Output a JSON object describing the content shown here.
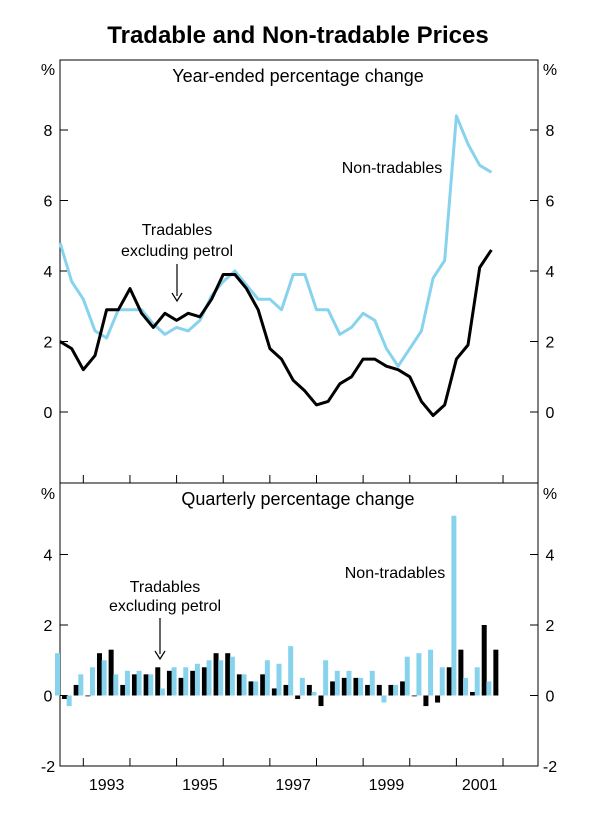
{
  "colors": {
    "tradables": "#000000",
    "nontradables": "#87d3ee",
    "frame": "#000000"
  },
  "chart_data": [
    {
      "type": "line",
      "title": "Tradable and Non-tradable Prices",
      "subtitle": "Year-ended percentage change",
      "unit_label": "%",
      "ylim": [
        -2,
        10
      ],
      "yticks": [
        "8",
        "6",
        "4",
        "2",
        "0"
      ],
      "ytick_values": [
        8,
        6,
        4,
        2,
        0
      ],
      "x_start": 1991.5,
      "x_step": 0.25,
      "series": [
        {
          "name": "Non-tradables",
          "values": [
            4.8,
            3.7,
            3.2,
            2.3,
            2.1,
            2.9,
            2.9,
            2.9,
            2.5,
            2.2,
            2.4,
            2.3,
            2.6,
            3.3,
            3.7,
            4.0,
            3.6,
            3.2,
            3.2,
            2.9,
            3.9,
            3.9,
            2.9,
            2.9,
            2.2,
            2.4,
            2.8,
            2.6,
            1.8,
            1.3,
            1.8,
            2.3,
            3.8,
            4.3,
            8.4,
            7.6,
            7.0,
            6.8
          ]
        },
        {
          "name": "Tradables excluding petrol",
          "values": [
            2.0,
            1.8,
            1.2,
            1.6,
            2.9,
            2.9,
            3.5,
            2.8,
            2.4,
            2.8,
            2.6,
            2.8,
            2.7,
            3.2,
            3.9,
            3.9,
            3.5,
            2.9,
            1.8,
            1.5,
            0.9,
            0.6,
            0.2,
            0.3,
            0.8,
            1.0,
            1.5,
            1.5,
            1.3,
            1.2,
            1.0,
            0.3,
            -0.1,
            0.2,
            1.5,
            1.9,
            4.1,
            4.6
          ]
        }
      ],
      "annotations": [
        {
          "text": "Non-tradables"
        },
        {
          "text": "Tradables"
        },
        {
          "text": "excluding petrol"
        }
      ]
    },
    {
      "type": "bar",
      "subtitle": "Quarterly percentage change",
      "unit_label": "%",
      "ylim": [
        -2,
        6
      ],
      "yticks": [
        "4",
        "2",
        "0",
        "-2"
      ],
      "ytick_values": [
        4,
        2,
        0,
        -2
      ],
      "x_start": 1991.5,
      "x_step": 0.25,
      "series": [
        {
          "name": "Tradables excluding petrol",
          "values": [
            -0.1,
            0.3,
            0.0,
            1.2,
            1.3,
            0.3,
            0.6,
            0.6,
            0.8,
            0.7,
            0.5,
            0.7,
            0.8,
            1.2,
            1.2,
            0.6,
            0.4,
            0.6,
            0.2,
            0.3,
            -0.1,
            0.3,
            -0.3,
            0.4,
            0.5,
            0.5,
            0.3,
            0.3,
            0.3,
            0.4,
            0.0,
            -0.3,
            -0.2,
            0.8,
            1.3,
            0.1,
            2.0,
            1.3
          ]
        },
        {
          "name": "Non-tradables",
          "values": [
            1.2,
            -0.3,
            0.6,
            0.8,
            1.0,
            0.6,
            0.7,
            0.7,
            0.6,
            0.2,
            0.8,
            0.8,
            0.9,
            1.0,
            1.0,
            1.1,
            0.6,
            0.4,
            1.0,
            0.9,
            1.4,
            0.5,
            0.1,
            1.0,
            0.7,
            0.7,
            0.5,
            0.7,
            -0.2,
            0.3,
            1.1,
            1.2,
            1.3,
            0.8,
            5.1,
            0.5,
            0.8,
            0.4
          ]
        }
      ],
      "xtick_labels": [
        "1993",
        "1995",
        "1997",
        "1999",
        "2001"
      ],
      "xtick_values": [
        1993,
        1995,
        1997,
        1999,
        2001
      ],
      "annotations": [
        {
          "text": "Non-tradables"
        },
        {
          "text": "Tradables"
        },
        {
          "text": "excluding petrol"
        }
      ]
    }
  ]
}
